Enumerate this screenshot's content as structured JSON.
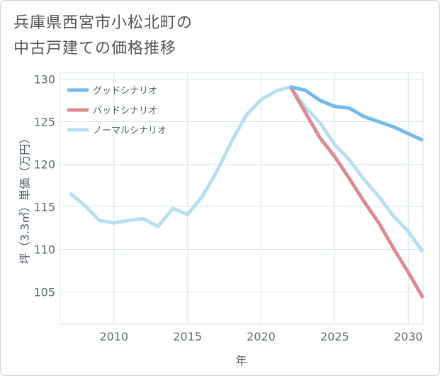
{
  "title": {
    "line1": "兵庫県西宮市小松北町の",
    "line2": "中古戸建ての価格推移"
  },
  "colors": {
    "good": "#74baea",
    "bad": "#db8b93",
    "normal": "#b8dff0",
    "grid": "#d5e4ee",
    "axis_text": "#5b6b7b"
  },
  "chart_data": {
    "type": "line",
    "title": "兵庫県西宮市小松北町の中古戸建ての価格推移",
    "xlabel": "年",
    "ylabel": "坪（3.3㎡）単価（万円）",
    "xlim": [
      2006.3,
      2031
    ],
    "ylim": [
      101.2,
      130.8
    ],
    "x_ticks": [
      2010,
      2015,
      2020,
      2025,
      2030
    ],
    "y_ticks": [
      105,
      110,
      115,
      120,
      125,
      130
    ],
    "legend_position": "top-left",
    "series": [
      {
        "name": "グッドシナリオ",
        "key": "good",
        "x": [
          2022,
          2023,
          2024,
          2025,
          2026,
          2027,
          2028,
          2029,
          2030,
          2031
        ],
        "values": [
          129.1,
          128.7,
          127.5,
          126.8,
          126.6,
          125.6,
          125.0,
          124.4,
          123.6,
          122.8
        ]
      },
      {
        "name": "バッドシナリオ",
        "key": "bad",
        "x": [
          2022,
          2023,
          2024,
          2025,
          2026,
          2027,
          2028,
          2029,
          2030,
          2031
        ],
        "values": [
          129.1,
          126.1,
          123.1,
          120.9,
          118.3,
          115.6,
          113.1,
          110.1,
          107.3,
          104.3
        ]
      },
      {
        "name": "ノーマルシナリオ",
        "key": "normal",
        "x": [
          2007,
          2008,
          2009,
          2010,
          2011,
          2012,
          2013,
          2014,
          2015,
          2016,
          2017,
          2018,
          2019,
          2020,
          2021,
          2022,
          2023,
          2024,
          2025,
          2026,
          2027,
          2028,
          2029,
          2030,
          2031
        ],
        "values": [
          116.6,
          115.2,
          113.4,
          113.1,
          113.4,
          113.6,
          112.7,
          114.8,
          114.1,
          116.2,
          119.2,
          122.7,
          125.8,
          127.6,
          128.6,
          129.1,
          126.7,
          124.9,
          122.3,
          120.5,
          118.2,
          116.2,
          113.9,
          112.1,
          109.7
        ]
      }
    ]
  }
}
